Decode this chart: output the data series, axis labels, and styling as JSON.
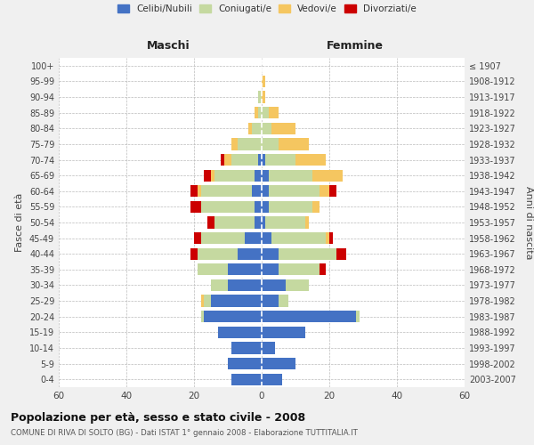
{
  "age_groups": [
    "0-4",
    "5-9",
    "10-14",
    "15-19",
    "20-24",
    "25-29",
    "30-34",
    "35-39",
    "40-44",
    "45-49",
    "50-54",
    "55-59",
    "60-64",
    "65-69",
    "70-74",
    "75-79",
    "80-84",
    "85-89",
    "90-94",
    "95-99",
    "100+"
  ],
  "birth_years": [
    "2003-2007",
    "1998-2002",
    "1993-1997",
    "1988-1992",
    "1983-1987",
    "1978-1982",
    "1973-1977",
    "1968-1972",
    "1963-1967",
    "1958-1962",
    "1953-1957",
    "1948-1952",
    "1943-1947",
    "1938-1942",
    "1933-1937",
    "1928-1932",
    "1923-1927",
    "1918-1922",
    "1913-1917",
    "1908-1912",
    "≤ 1907"
  ],
  "male": {
    "celibi": [
      9,
      10,
      9,
      13,
      17,
      15,
      10,
      10,
      7,
      5,
      2,
      2,
      3,
      2,
      1,
      0,
      0,
      0,
      0,
      0,
      0
    ],
    "coniugati": [
      0,
      0,
      0,
      0,
      1,
      2,
      5,
      9,
      12,
      13,
      12,
      16,
      15,
      12,
      8,
      7,
      3,
      1,
      1,
      0,
      0
    ],
    "vedovi": [
      0,
      0,
      0,
      0,
      0,
      1,
      0,
      0,
      0,
      0,
      0,
      0,
      1,
      1,
      2,
      2,
      1,
      1,
      0,
      0,
      0
    ],
    "divorziati": [
      0,
      0,
      0,
      0,
      0,
      0,
      0,
      0,
      2,
      2,
      2,
      3,
      2,
      2,
      1,
      0,
      0,
      0,
      0,
      0,
      0
    ]
  },
  "female": {
    "nubili": [
      6,
      10,
      4,
      13,
      28,
      5,
      7,
      5,
      5,
      3,
      1,
      2,
      2,
      2,
      1,
      0,
      0,
      0,
      0,
      0,
      0
    ],
    "coniugate": [
      0,
      0,
      0,
      0,
      1,
      3,
      7,
      12,
      17,
      16,
      12,
      13,
      15,
      13,
      9,
      5,
      3,
      2,
      0,
      0,
      0
    ],
    "vedove": [
      0,
      0,
      0,
      0,
      0,
      0,
      0,
      0,
      0,
      1,
      1,
      2,
      3,
      9,
      9,
      9,
      7,
      3,
      1,
      1,
      0
    ],
    "divorziate": [
      0,
      0,
      0,
      0,
      0,
      0,
      0,
      2,
      3,
      1,
      0,
      0,
      2,
      0,
      0,
      0,
      0,
      0,
      0,
      0,
      0
    ]
  },
  "color_celibi": "#4472C4",
  "color_coniugati": "#C5D9A0",
  "color_vedovi": "#F5C660",
  "color_divorziati": "#CC0000",
  "xlim": 60,
  "title": "Popolazione per età, sesso e stato civile - 2008",
  "subtitle": "COMUNE DI RIVA DI SOLTO (BG) - Dati ISTAT 1° gennaio 2008 - Elaborazione TUTTITALIA.IT",
  "ylabel_left": "Fasce di età",
  "ylabel_right": "Anni di nascita",
  "xlabel_left": "Maschi",
  "xlabel_right": "Femmine",
  "bg_color": "#f0f0f0",
  "plot_bg": "#ffffff",
  "legend_labels": [
    "Celibi/Nubili",
    "Coniugati/e",
    "Vedovi/e",
    "Divorziati/e"
  ]
}
